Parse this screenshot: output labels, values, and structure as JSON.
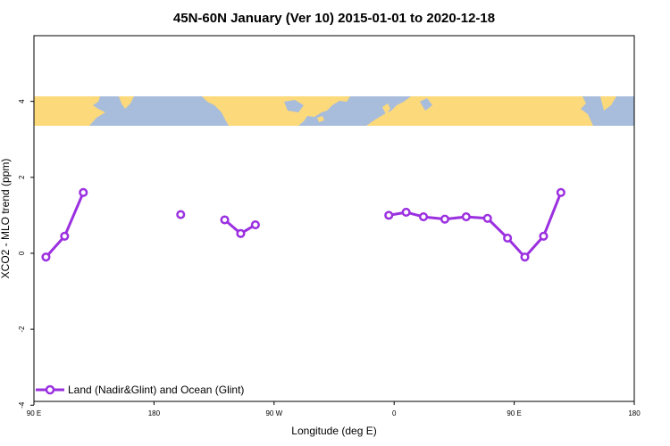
{
  "chart_data": {
    "type": "line",
    "title": "45N-60N January (Ver 10)   2015-01-01 to 2020-12-18",
    "xlabel": "Longitude (deg E)",
    "ylabel": "XCO2 - MLO trend (ppm)",
    "xlim": [
      90,
      540
    ],
    "ylim": [
      -4,
      6
    ],
    "x_ticks": [
      {
        "value": 90,
        "label": "90 E"
      },
      {
        "value": 180,
        "label": "180"
      },
      {
        "value": 270,
        "label": "90 W"
      },
      {
        "value": 360,
        "label": "0"
      },
      {
        "value": 450,
        "label": "90 E"
      },
      {
        "value": 540,
        "label": "180"
      }
    ],
    "y_ticks": [
      {
        "value": -4,
        "label": "-4"
      },
      {
        "value": -2,
        "label": "-2"
      },
      {
        "value": 0,
        "label": "0"
      },
      {
        "value": 2,
        "label": "2"
      },
      {
        "value": 4,
        "label": "4"
      }
    ],
    "map_band": {
      "ymin": 3.4,
      "ymax": 4.2,
      "ocean_color": "#a8bcdc",
      "land_color": "#fcd97a"
    },
    "legend_position": "bottom-left",
    "series": [
      {
        "name": "Land (Nadir&Glint) and Ocean (Glint)",
        "color": "#9b30e0",
        "segments": [
          [
            [
              99,
              -0.1
            ],
            [
              113,
              0.45
            ],
            [
              127,
              1.6
            ]
          ],
          [
            [
              200,
              1.02
            ]
          ],
          [
            [
              233,
              0.88
            ],
            [
              245,
              0.52
            ],
            [
              256,
              0.75
            ]
          ],
          [
            [
              356,
              1.0
            ],
            [
              369,
              1.08
            ],
            [
              382,
              0.96
            ],
            [
              398,
              0.9
            ],
            [
              414,
              0.96
            ],
            [
              430,
              0.92
            ],
            [
              445,
              0.4
            ],
            [
              458,
              -0.1
            ],
            [
              472,
              0.45
            ],
            [
              485,
              1.6
            ]
          ]
        ]
      }
    ]
  }
}
